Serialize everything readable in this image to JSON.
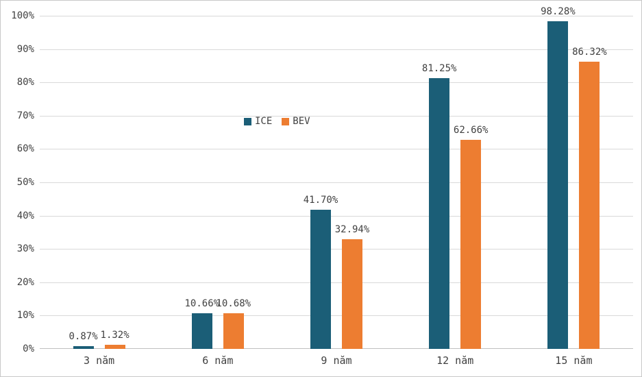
{
  "chart_data": {
    "type": "bar",
    "categories": [
      "3 năm",
      "6 năm",
      "9 năm",
      "12 năm",
      "15 năm"
    ],
    "series": [
      {
        "name": "ICE",
        "color": "#1b5e77",
        "values": [
          0.87,
          10.66,
          41.7,
          81.25,
          98.28
        ],
        "labels": [
          "0.87%",
          "10.66%",
          "41.70%",
          "81.25%",
          "98.28%"
        ]
      },
      {
        "name": "BEV",
        "color": "#ed7d31",
        "values": [
          1.32,
          10.68,
          32.94,
          62.66,
          86.32
        ],
        "labels": [
          "1.32%",
          "10.68%",
          "32.94%",
          "62.66%",
          "86.32%"
        ]
      }
    ],
    "title": "",
    "xlabel": "",
    "ylabel": "",
    "ylim": [
      0,
      100
    ],
    "ytick_step": 10,
    "ytick_labels": [
      "0%",
      "10%",
      "20%",
      "30%",
      "40%",
      "50%",
      "60%",
      "70%",
      "80%",
      "90%",
      "100%"
    ],
    "grid": true,
    "legend_position": "inside-upper-middle"
  },
  "colors": {
    "gridline": "#d9d9d9",
    "axis": "#bfbfbf",
    "text": "#404040",
    "background": "#ffffff"
  }
}
